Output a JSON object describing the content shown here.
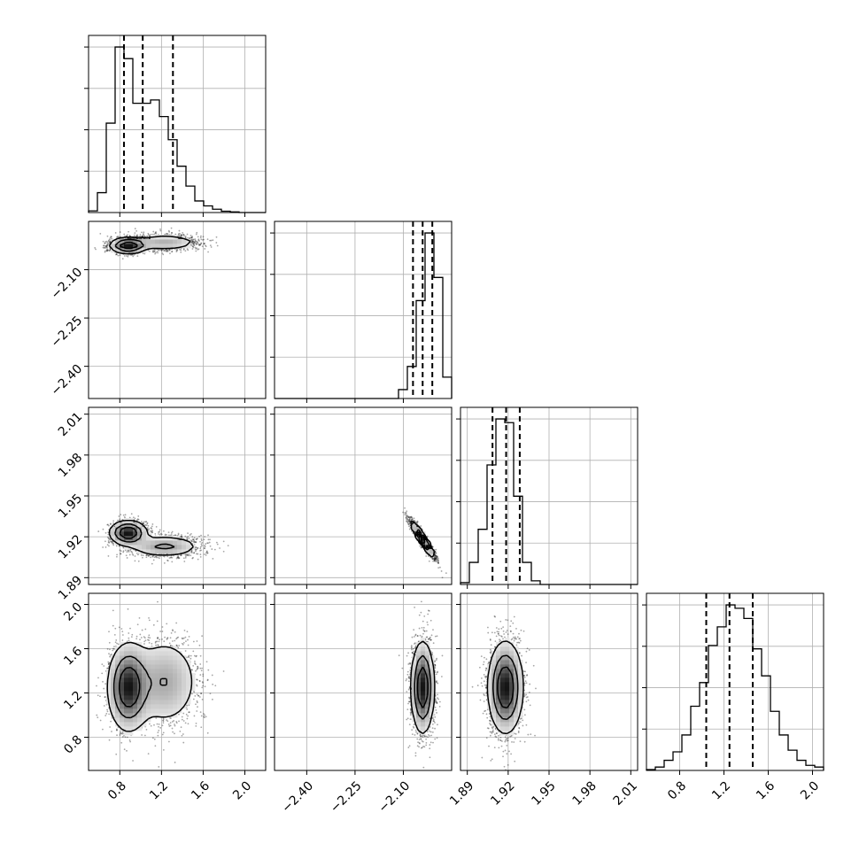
{
  "chart_data": {
    "type": "corner",
    "grid": true,
    "parameters": [
      {
        "range": [
          0.5,
          2.2
        ],
        "ticks": [
          0.8,
          1.2,
          1.6,
          2.0
        ],
        "tick_labels": [
          "0.8",
          "1.2",
          "1.6",
          "2.0"
        ],
        "quantiles": [
          0.84,
          1.02,
          1.31
        ],
        "hist_edges": [
          0.5,
          0.585,
          0.67,
          0.755,
          0.84,
          0.925,
          1.01,
          1.095,
          1.18,
          1.265,
          1.35,
          1.435,
          1.52,
          1.605,
          1.69,
          1.775,
          1.86,
          1.945,
          2.03,
          2.115,
          2.2
        ],
        "hist_counts": [
          0.01,
          0.12,
          0.54,
          1.0,
          0.93,
          0.66,
          0.66,
          0.68,
          0.58,
          0.44,
          0.28,
          0.16,
          0.07,
          0.04,
          0.02,
          0.008,
          0.004,
          0.0,
          0.0,
          0.0
        ]
      },
      {
        "range": [
          -2.5,
          -1.95
        ],
        "ticks": [
          -2.4,
          -2.25,
          -2.1
        ],
        "tick_labels": [
          "−2.40",
          "−2.25",
          "−2.10"
        ],
        "quantiles": [
          -2.07,
          -2.04,
          -2.01
        ],
        "hist_edges": [
          -2.5,
          -2.4725,
          -2.445,
          -2.4175,
          -2.39,
          -2.3625,
          -2.335,
          -2.3075,
          -2.28,
          -2.2525,
          -2.225,
          -2.1975,
          -2.17,
          -2.1425,
          -2.115,
          -2.0875,
          -2.06,
          -2.0325,
          -2.005,
          -1.9775,
          -1.95
        ],
        "hist_counts": [
          0,
          0,
          0,
          0,
          0,
          0,
          0,
          0,
          0,
          0,
          0,
          0,
          0,
          0,
          0.05,
          0.18,
          0.55,
          0.93,
          0.68,
          0.12
        ]
      },
      {
        "range": [
          1.885,
          2.015
        ],
        "ticks": [
          1.89,
          1.92,
          1.95,
          1.98,
          2.01
        ],
        "tick_labels": [
          "1.89",
          "1.92",
          "1.95",
          "1.98",
          "2.01"
        ],
        "quantiles": [
          1.9085,
          1.9185,
          1.9285
        ],
        "hist_edges": [
          1.885,
          1.8915,
          1.898,
          1.9045,
          1.911,
          1.9175,
          1.924,
          1.9305,
          1.937,
          1.9435,
          1.95,
          1.9565,
          1.963,
          1.9695,
          1.976,
          1.9825,
          1.989,
          1.9955,
          2.002,
          2.0085,
          2.015
        ],
        "hist_counts": [
          0.01,
          0.12,
          0.3,
          0.65,
          0.9,
          0.88,
          0.48,
          0.12,
          0.02,
          0.0,
          0.0,
          0.0,
          0.0,
          0.0,
          0.0,
          0.0,
          0.0,
          0.0,
          0.0,
          0.0
        ]
      },
      {
        "range": [
          0.5,
          2.1
        ],
        "ticks": [
          0.8,
          1.2,
          1.6,
          2.0
        ],
        "tick_labels": [
          "0.8",
          "1.2",
          "1.6",
          "2.0"
        ],
        "quantiles": [
          1.04,
          1.25,
          1.46
        ],
        "hist_edges": [
          0.5,
          0.58,
          0.66,
          0.74,
          0.82,
          0.9,
          0.98,
          1.06,
          1.14,
          1.22,
          1.3,
          1.38,
          1.46,
          1.54,
          1.62,
          1.7,
          1.78,
          1.86,
          1.94,
          2.02,
          2.1
        ],
        "hist_counts": [
          0.005,
          0.02,
          0.06,
          0.11,
          0.21,
          0.38,
          0.52,
          0.74,
          0.85,
          0.98,
          0.96,
          0.9,
          0.72,
          0.56,
          0.35,
          0.21,
          0.12,
          0.06,
          0.03,
          0.02
        ]
      }
    ],
    "pairs": [
      {
        "row": 1,
        "col": 0,
        "correlation": 0.0,
        "modes": [
          {
            "mean": [
              0.88,
              -2.025
            ],
            "sd": [
              0.09,
              0.012
            ],
            "weight": 0.55
          },
          {
            "mean": [
              1.23,
              -2.015
            ],
            "sd": [
              0.18,
              0.013
            ],
            "weight": 0.45
          }
        ]
      },
      {
        "row": 2,
        "col": 0,
        "correlation": 0.0,
        "modes": [
          {
            "mean": [
              0.88,
              1.923
            ],
            "sd": [
              0.09,
              0.0045
            ],
            "weight": 0.55
          },
          {
            "mean": [
              1.23,
              1.913
            ],
            "sd": [
              0.18,
              0.0042
            ],
            "weight": 0.45
          }
        ]
      },
      {
        "row": 2,
        "col": 1,
        "correlation": -0.93,
        "modes": [
          {
            "mean": [
              -2.04,
              1.918
            ],
            "sd": [
              0.018,
              0.0065
            ],
            "weight": 1.0
          }
        ]
      },
      {
        "row": 3,
        "col": 0,
        "correlation": 0.0,
        "modes": [
          {
            "mean": [
              0.88,
              1.25
            ],
            "sd": [
              0.1,
              0.2
            ],
            "weight": 0.55
          },
          {
            "mean": [
              1.23,
              1.3
            ],
            "sd": [
              0.18,
              0.22
            ],
            "weight": 0.45
          }
        ]
      },
      {
        "row": 3,
        "col": 1,
        "correlation": 0.0,
        "modes": [
          {
            "mean": [
              -2.04,
              1.25
            ],
            "sd": [
              0.018,
              0.21
            ],
            "weight": 1.0
          }
        ]
      },
      {
        "row": 3,
        "col": 2,
        "correlation": 0.0,
        "modes": [
          {
            "mean": [
              1.918,
              1.25
            ],
            "sd": [
              0.0065,
              0.21
            ],
            "weight": 1.0
          }
        ]
      }
    ]
  }
}
